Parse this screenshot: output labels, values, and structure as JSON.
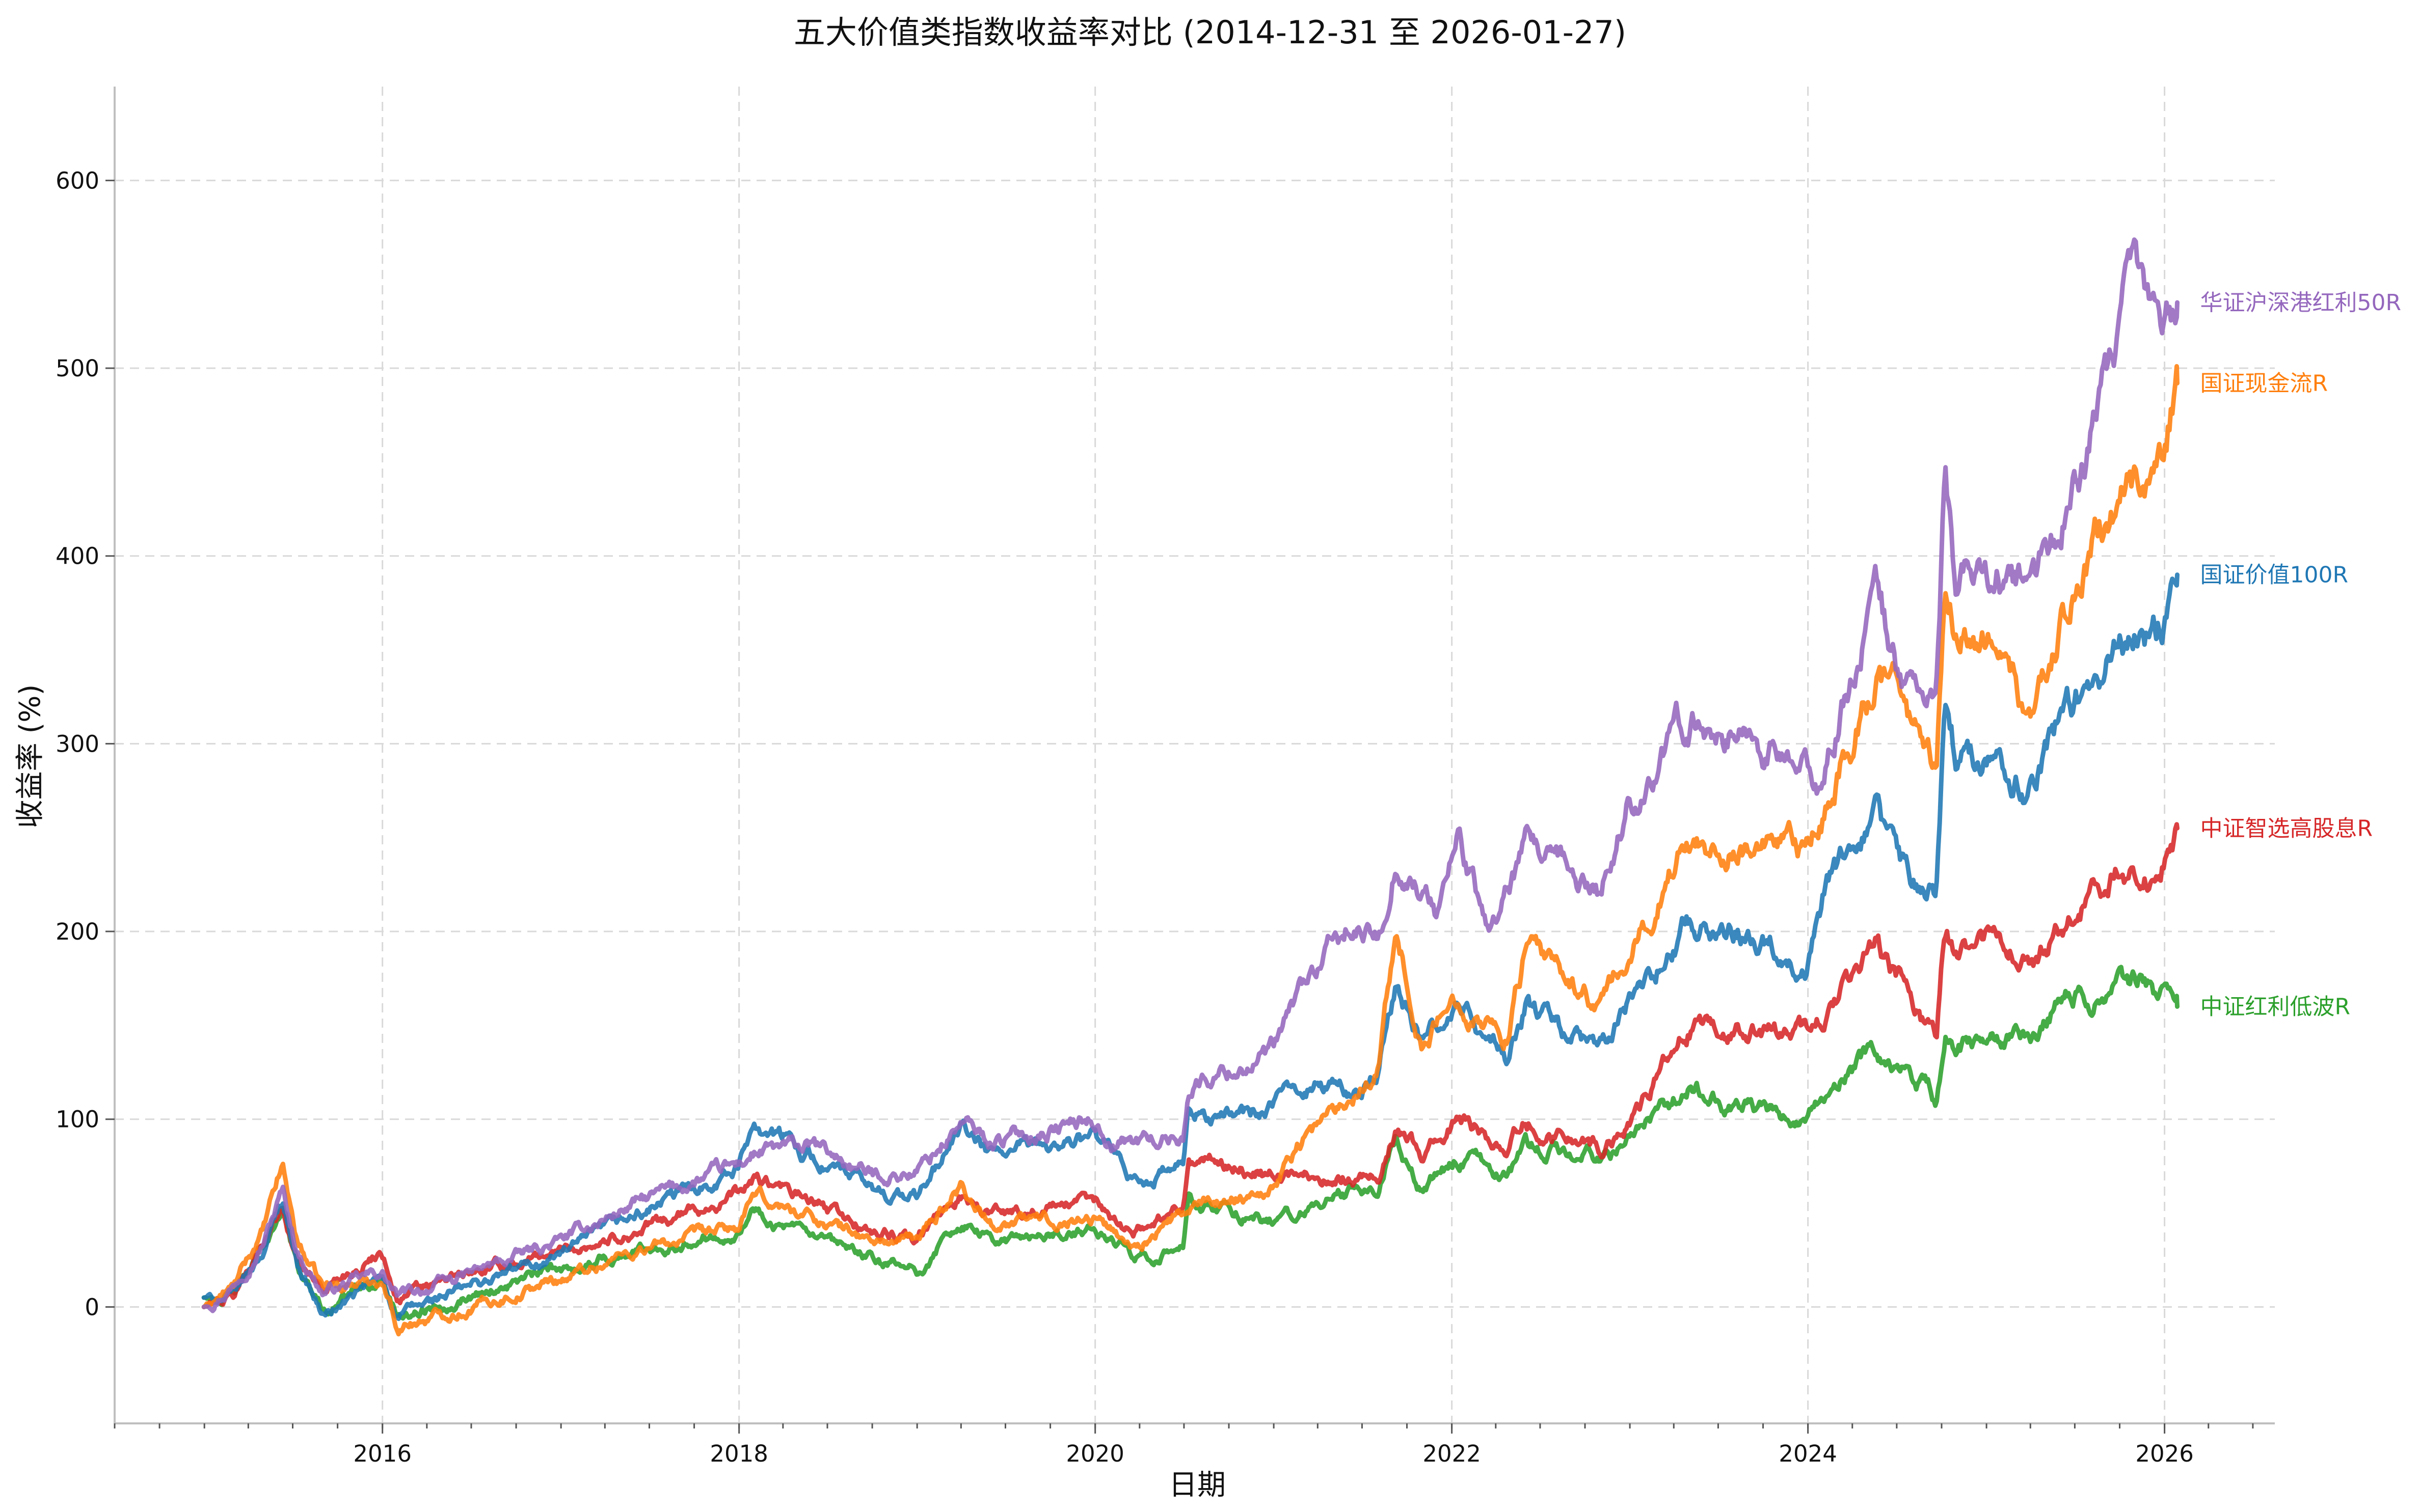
{
  "chart_data": {
    "type": "line",
    "title": "五大价值类指数收益率对比 (2014-12-31 至 2026-01-27)",
    "xlabel": "日期",
    "ylabel": "收益率 (%)",
    "xlim": [
      "2014-07-01",
      "2026-08-15"
    ],
    "ylim": [
      -62,
      650
    ],
    "x_ticks": [
      "2016",
      "2018",
      "2020",
      "2022",
      "2024",
      "2026"
    ],
    "y_ticks": [
      0,
      100,
      200,
      300,
      400,
      500,
      600
    ],
    "grid": true,
    "legend": "end-of-line labels",
    "series": [
      {
        "name": "华证沪深港红利50R",
        "color": "#9467bd",
        "points": [
          [
            "2014-12-31",
            0
          ],
          [
            "2015-03-01",
            12
          ],
          [
            "2015-05-01",
            35
          ],
          [
            "2015-06-10",
            62
          ],
          [
            "2015-07-10",
            30
          ],
          [
            "2015-09-01",
            8
          ],
          [
            "2015-12-31",
            18
          ],
          [
            "2016-02-01",
            5
          ],
          [
            "2016-06-01",
            15
          ],
          [
            "2016-12-31",
            35
          ],
          [
            "2017-06-01",
            55
          ],
          [
            "2017-12-31",
            75
          ],
          [
            "2018-02-01",
            82
          ],
          [
            "2018-06-01",
            85
          ],
          [
            "2018-10-01",
            70
          ],
          [
            "2018-12-31",
            72
          ],
          [
            "2019-04-01",
            98
          ],
          [
            "2019-06-01",
            88
          ],
          [
            "2019-12-31",
            100
          ],
          [
            "2020-02-01",
            88
          ],
          [
            "2020-06-30",
            90
          ],
          [
            "2020-07-10",
            118
          ],
          [
            "2020-12-31",
            135
          ],
          [
            "2021-03-01",
            170
          ],
          [
            "2021-06-01",
            200
          ],
          [
            "2021-08-01",
            195
          ],
          [
            "2021-09-10",
            240
          ],
          [
            "2021-12-01",
            210
          ],
          [
            "2022-01-15",
            250
          ],
          [
            "2022-03-15",
            198
          ],
          [
            "2022-06-01",
            242
          ],
          [
            "2022-10-31",
            220
          ],
          [
            "2022-12-31",
            268
          ],
          [
            "2023-05-01",
            312
          ],
          [
            "2023-09-01",
            305
          ],
          [
            "2023-12-31",
            282
          ],
          [
            "2024-02-01",
            280
          ],
          [
            "2024-05-20",
            382
          ],
          [
            "2024-07-01",
            340
          ],
          [
            "2024-09-20",
            320
          ],
          [
            "2024-10-08",
            445
          ],
          [
            "2024-11-01",
            380
          ],
          [
            "2024-12-31",
            395
          ],
          [
            "2025-04-07",
            380
          ],
          [
            "2025-06-01",
            418
          ],
          [
            "2025-08-01",
            460
          ],
          [
            "2025-10-01",
            510
          ],
          [
            "2025-11-01",
            548
          ],
          [
            "2025-12-15",
            520
          ],
          [
            "2026-01-27",
            535
          ]
        ]
      },
      {
        "name": "国证现金流R",
        "color": "#ff7f0e",
        "points": [
          [
            "2014-12-31",
            0
          ],
          [
            "2015-03-01",
            10
          ],
          [
            "2015-05-01",
            40
          ],
          [
            "2015-06-10",
            75
          ],
          [
            "2015-07-10",
            35
          ],
          [
            "2015-09-01",
            10
          ],
          [
            "2015-12-31",
            15
          ],
          [
            "2016-02-01",
            -10
          ],
          [
            "2016-06-01",
            -2
          ],
          [
            "2016-12-31",
            15
          ],
          [
            "2017-06-01",
            30
          ],
          [
            "2017-12-31",
            42
          ],
          [
            "2018-02-01",
            58
          ],
          [
            "2018-06-01",
            48
          ],
          [
            "2018-10-01",
            35
          ],
          [
            "2018-12-31",
            35
          ],
          [
            "2019-04-01",
            65
          ],
          [
            "2019-06-01",
            45
          ],
          [
            "2019-12-31",
            48
          ],
          [
            "2020-03-20",
            32
          ],
          [
            "2020-06-30",
            50
          ],
          [
            "2020-12-31",
            65
          ],
          [
            "2021-03-01",
            90
          ],
          [
            "2021-06-01",
            110
          ],
          [
            "2021-08-01",
            130
          ],
          [
            "2021-09-10",
            200
          ],
          [
            "2021-11-01",
            140
          ],
          [
            "2022-01-15",
            165
          ],
          [
            "2022-04-25",
            145
          ],
          [
            "2022-06-01",
            190
          ],
          [
            "2022-10-31",
            160
          ],
          [
            "2022-12-31",
            185
          ],
          [
            "2023-05-01",
            250
          ],
          [
            "2023-09-01",
            245
          ],
          [
            "2023-12-31",
            240
          ],
          [
            "2024-02-05",
            265
          ],
          [
            "2024-05-20",
            335
          ],
          [
            "2024-07-01",
            330
          ],
          [
            "2024-09-20",
            280
          ],
          [
            "2024-10-08",
            382
          ],
          [
            "2024-11-01",
            360
          ],
          [
            "2024-12-31",
            360
          ],
          [
            "2025-04-07",
            310
          ],
          [
            "2025-06-01",
            360
          ],
          [
            "2025-08-01",
            400
          ],
          [
            "2025-10-01",
            430
          ],
          [
            "2025-12-15",
            445
          ],
          [
            "2026-01-27",
            492
          ]
        ]
      },
      {
        "name": "国证价值100R",
        "color": "#1f77b4",
        "points": [
          [
            "2014-12-31",
            5
          ],
          [
            "2015-03-01",
            5
          ],
          [
            "2015-05-01",
            30
          ],
          [
            "2015-06-10",
            58
          ],
          [
            "2015-07-10",
            25
          ],
          [
            "2015-09-01",
            -5
          ],
          [
            "2015-12-31",
            15
          ],
          [
            "2016-02-01",
            -5
          ],
          [
            "2016-06-01",
            8
          ],
          [
            "2016-12-31",
            28
          ],
          [
            "2017-06-01",
            48
          ],
          [
            "2017-12-31",
            75
          ],
          [
            "2018-02-01",
            100
          ],
          [
            "2018-06-01",
            80
          ],
          [
            "2018-10-01",
            62
          ],
          [
            "2018-12-31",
            58
          ],
          [
            "2019-04-01",
            95
          ],
          [
            "2019-06-01",
            80
          ],
          [
            "2019-12-31",
            90
          ],
          [
            "2020-03-20",
            65
          ],
          [
            "2020-06-30",
            75
          ],
          [
            "2020-07-10",
            100
          ],
          [
            "2020-12-31",
            105
          ],
          [
            "2021-03-01",
            120
          ],
          [
            "2021-06-01",
            115
          ],
          [
            "2021-08-01",
            120
          ],
          [
            "2021-09-10",
            175
          ],
          [
            "2021-11-01",
            140
          ],
          [
            "2022-01-15",
            160
          ],
          [
            "2022-04-25",
            130
          ],
          [
            "2022-06-01",
            160
          ],
          [
            "2022-10-31",
            135
          ],
          [
            "2022-12-31",
            160
          ],
          [
            "2023-05-01",
            205
          ],
          [
            "2023-09-01",
            200
          ],
          [
            "2023-12-31",
            185
          ],
          [
            "2024-02-05",
            220
          ],
          [
            "2024-05-20",
            260
          ],
          [
            "2024-07-01",
            235
          ],
          [
            "2024-09-20",
            220
          ],
          [
            "2024-10-08",
            330
          ],
          [
            "2024-11-01",
            290
          ],
          [
            "2024-12-31",
            295
          ],
          [
            "2025-04-07",
            275
          ],
          [
            "2025-06-01",
            310
          ],
          [
            "2025-08-01",
            330
          ],
          [
            "2025-10-01",
            355
          ],
          [
            "2025-12-15",
            360
          ],
          [
            "2026-01-27",
            390
          ]
        ]
      },
      {
        "name": "中证智选高股息R",
        "color": "#d62728",
        "points": [
          [
            "2014-12-31",
            0
          ],
          [
            "2015-03-01",
            5
          ],
          [
            "2015-05-01",
            35
          ],
          [
            "2015-06-10",
            55
          ],
          [
            "2015-07-10",
            25
          ],
          [
            "2015-09-01",
            10
          ],
          [
            "2015-12-31",
            30
          ],
          [
            "2016-02-01",
            5
          ],
          [
            "2016-06-01",
            15
          ],
          [
            "2016-12-31",
            30
          ],
          [
            "2017-06-01",
            40
          ],
          [
            "2017-12-31",
            60
          ],
          [
            "2018-02-01",
            68
          ],
          [
            "2018-06-01",
            55
          ],
          [
            "2018-10-01",
            40
          ],
          [
            "2018-12-31",
            35
          ],
          [
            "2019-04-01",
            60
          ],
          [
            "2019-06-01",
            50
          ],
          [
            "2019-12-31",
            55
          ],
          [
            "2020-03-20",
            40
          ],
          [
            "2020-06-30",
            55
          ],
          [
            "2020-07-10",
            80
          ],
          [
            "2020-12-31",
            70
          ],
          [
            "2021-06-01",
            70
          ],
          [
            "2021-08-01",
            70
          ],
          [
            "2021-09-10",
            95
          ],
          [
            "2021-11-01",
            80
          ],
          [
            "2022-01-15",
            100
          ],
          [
            "2022-04-25",
            85
          ],
          [
            "2022-06-01",
            100
          ],
          [
            "2022-10-31",
            85
          ],
          [
            "2022-12-31",
            100
          ],
          [
            "2023-05-01",
            145
          ],
          [
            "2023-09-01",
            145
          ],
          [
            "2023-12-31",
            145
          ],
          [
            "2024-02-05",
            155
          ],
          [
            "2024-05-20",
            190
          ],
          [
            "2024-07-01",
            175
          ],
          [
            "2024-09-20",
            140
          ],
          [
            "2024-10-08",
            200
          ],
          [
            "2024-11-01",
            190
          ],
          [
            "2024-12-31",
            195
          ],
          [
            "2025-04-07",
            185
          ],
          [
            "2025-06-01",
            200
          ],
          [
            "2025-08-01",
            220
          ],
          [
            "2025-10-01",
            235
          ],
          [
            "2025-12-15",
            230
          ],
          [
            "2026-01-27",
            255
          ]
        ]
      },
      {
        "name": "中证红利低波R",
        "color": "#2ca02c",
        "points": [
          [
            "2014-12-31",
            5
          ],
          [
            "2015-03-01",
            5
          ],
          [
            "2015-05-01",
            30
          ],
          [
            "2015-06-10",
            55
          ],
          [
            "2015-07-10",
            20
          ],
          [
            "2015-09-01",
            0
          ],
          [
            "2015-12-31",
            15
          ],
          [
            "2016-02-01",
            -5
          ],
          [
            "2016-06-01",
            5
          ],
          [
            "2016-12-31",
            20
          ],
          [
            "2017-06-01",
            30
          ],
          [
            "2017-12-31",
            42
          ],
          [
            "2018-02-01",
            52
          ],
          [
            "2018-06-01",
            35
          ],
          [
            "2018-10-01",
            25
          ],
          [
            "2018-12-31",
            18
          ],
          [
            "2019-04-01",
            45
          ],
          [
            "2019-06-01",
            35
          ],
          [
            "2019-12-31",
            40
          ],
          [
            "2020-03-20",
            28
          ],
          [
            "2020-06-30",
            30
          ],
          [
            "2020-07-10",
            55
          ],
          [
            "2020-12-31",
            45
          ],
          [
            "2021-06-01",
            60
          ],
          [
            "2021-08-01",
            60
          ],
          [
            "2021-09-10",
            90
          ],
          [
            "2021-11-01",
            65
          ],
          [
            "2022-01-15",
            80
          ],
          [
            "2022-04-25",
            70
          ],
          [
            "2022-06-01",
            85
          ],
          [
            "2022-10-31",
            80
          ],
          [
            "2022-12-31",
            88
          ],
          [
            "2023-05-01",
            115
          ],
          [
            "2023-09-01",
            105
          ],
          [
            "2023-12-31",
            100
          ],
          [
            "2024-02-05",
            110
          ],
          [
            "2024-05-20",
            140
          ],
          [
            "2024-07-01",
            130
          ],
          [
            "2024-09-20",
            110
          ],
          [
            "2024-10-08",
            148
          ],
          [
            "2024-11-01",
            140
          ],
          [
            "2024-12-31",
            145
          ],
          [
            "2025-04-07",
            145
          ],
          [
            "2025-06-01",
            165
          ],
          [
            "2025-08-01",
            165
          ],
          [
            "2025-10-01",
            170
          ],
          [
            "2025-11-15",
            175
          ],
          [
            "2025-12-15",
            165
          ],
          [
            "2026-01-27",
            160
          ]
        ]
      }
    ]
  }
}
